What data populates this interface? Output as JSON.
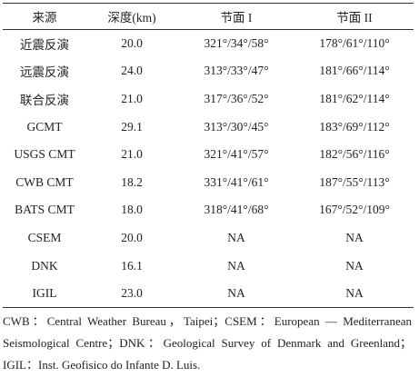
{
  "table": {
    "header": [
      "来源",
      "深度(km)",
      "节面 I",
      "节面 II"
    ],
    "rows": [
      [
        "近震反演",
        "20.0",
        "321°/34°/58°",
        "178°/61°/110°"
      ],
      [
        "远震反演",
        "24.0",
        "313°/33°/47°",
        "181°/66°/114°"
      ],
      [
        "联合反演",
        "21.0",
        "317°/36°/52°",
        "181°/62°/114°"
      ],
      [
        "GCMT",
        "29.1",
        "313°/30°/45°",
        "183°/69°/112°"
      ],
      [
        "USGS CMT",
        "21.0",
        "321°/41°/57°",
        "182°/56°/116°"
      ],
      [
        "CWB CMT",
        "18.2",
        "331°/41°/61°",
        "187°/55°/113°"
      ],
      [
        "BATS CMT",
        "18.0",
        "318°/41°/68°",
        "167°/52°/109°"
      ],
      [
        "CSEM",
        "20.0",
        "NA",
        "NA"
      ],
      [
        "DNK",
        "16.1",
        "NA",
        "NA"
      ],
      [
        "IGIL",
        "23.0",
        "NA",
        "NA"
      ]
    ]
  },
  "footnote": "CWB：Central Weather Bureau，Taipei；CSEM：European — Mediterranean Seismological Centre；DNK：Geological Survey of Denmark and Greenland；IGIL：Inst. Geofisico do Infante D. Luis."
}
